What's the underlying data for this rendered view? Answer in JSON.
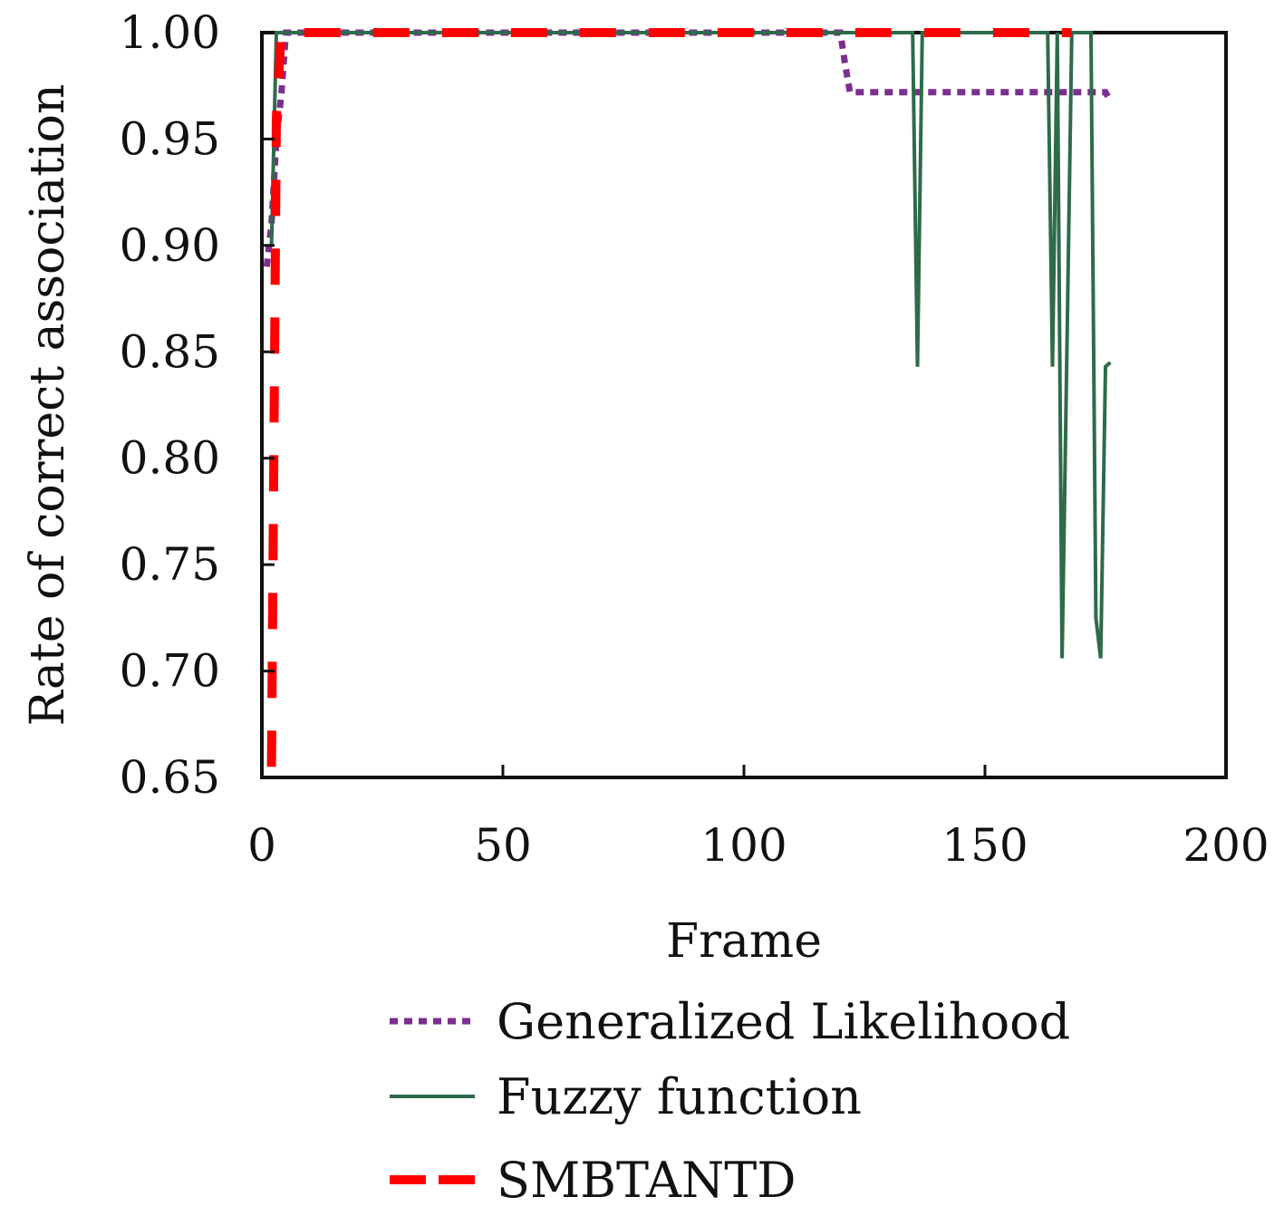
{
  "chart_data": {
    "type": "line",
    "xlabel": "Frame",
    "ylabel": "Rate of correct association",
    "xlim": [
      0,
      200
    ],
    "ylim": [
      0.65,
      1.0
    ],
    "xticks": [
      0,
      50,
      100,
      150,
      200
    ],
    "xtick_labels": [
      "0",
      "50",
      "100",
      "150",
      "200"
    ],
    "yticks": [
      0.65,
      0.7,
      0.75,
      0.8,
      0.85,
      0.9,
      0.95,
      1.0
    ],
    "ytick_labels": [
      "0.65",
      "0.70",
      "0.75",
      "0.80",
      "0.85",
      "0.90",
      "0.95",
      "1.00"
    ],
    "grid": false,
    "legend_position": "bottom",
    "series": [
      {
        "name": "Generalized Likelihood",
        "style": "dotted",
        "color": "#7b2f8f",
        "x": [
          1,
          2,
          3,
          4,
          5,
          10,
          20,
          50,
          100,
          120,
          121,
          122,
          130,
          150,
          170,
          175,
          176
        ],
        "y": [
          0.89,
          0.91,
          0.95,
          0.97,
          1.0,
          1.0,
          1.0,
          1.0,
          1.0,
          1.0,
          0.985,
          0.972,
          0.972,
          0.972,
          0.972,
          0.972,
          0.968
        ]
      },
      {
        "name": "Fuzzy function",
        "style": "solid",
        "color": "#2e6b4a",
        "x": [
          2,
          3,
          4,
          10,
          50,
          100,
          134,
          135,
          136,
          137,
          150,
          163,
          164,
          165,
          166,
          167,
          168,
          170,
          172,
          173,
          174,
          175,
          176
        ],
        "y": [
          0.9,
          1.0,
          1.0,
          1.0,
          1.0,
          1.0,
          1.0,
          1.0,
          0.843,
          1.0,
          1.0,
          1.0,
          0.843,
          1.0,
          0.706,
          0.85,
          1.0,
          1.0,
          1.0,
          0.725,
          0.706,
          0.843,
          0.845
        ]
      },
      {
        "name": "SMBTANTD",
        "style": "dashed",
        "color": "#ff0000",
        "x": [
          2,
          3,
          4,
          10,
          50,
          100,
          150,
          168
        ],
        "y": [
          0.655,
          0.96,
          1.0,
          1.0,
          1.0,
          1.0,
          1.0,
          1.0
        ]
      }
    ]
  }
}
